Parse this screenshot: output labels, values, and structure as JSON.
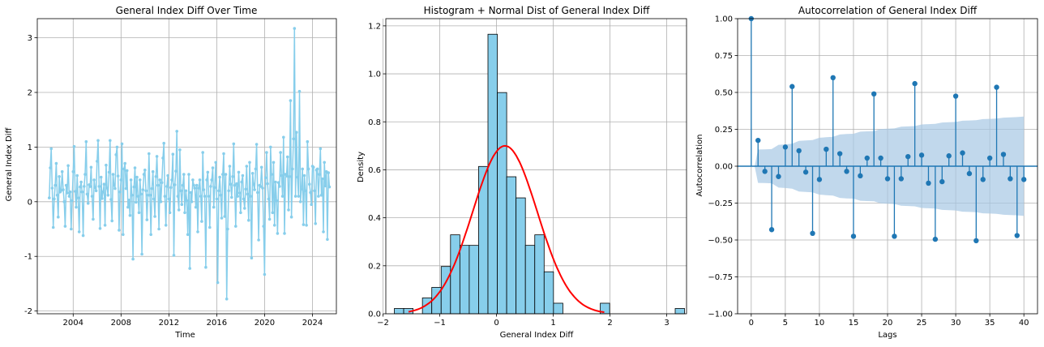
{
  "colors": {
    "line": "#87ceeb",
    "hist_fill": "#87ceeb",
    "normal": "#ff0000",
    "acf": "#1f77b4",
    "band": "#a6c8e4",
    "grid": "#b0b0b0"
  },
  "chart_data": [
    {
      "type": "line",
      "title": "General Index Diff Over Time",
      "xlabel": "Time",
      "ylabel": "General Index Diff",
      "xlim": [
        2001.0,
        2026.0
      ],
      "ylim": [
        -2.05,
        3.35
      ],
      "xticks": [
        "2004",
        "2008",
        "2012",
        "2016",
        "2020",
        "2024"
      ],
      "yticks": [
        "-2",
        "-1",
        "0",
        "1",
        "2",
        "3"
      ],
      "grid": true,
      "x_start": 2002.0,
      "x_step": 0.0833333,
      "values": [
        0.07,
        0.62,
        0.97,
        0.25,
        -0.47,
        0.05,
        0.3,
        0.7,
        0.12,
        -0.28,
        0.46,
        0.18,
        0.21,
        0.55,
        0.22,
        0.0,
        -0.45,
        0.3,
        0.16,
        0.66,
        0.1,
        0.18,
        -0.5,
        0.02,
        0.55,
        1.01,
        0.19,
        -0.1,
        0.48,
        0.07,
        -0.55,
        0.27,
        0.36,
        0.18,
        -0.62,
        0.28,
        0.5,
        1.1,
        0.14,
        -0.03,
        0.31,
        0.28,
        0.63,
        0.1,
        -0.32,
        0.4,
        0.26,
        0.2,
        0.74,
        1.12,
        0.28,
        -0.49,
        0.45,
        0.06,
        0.18,
        0.32,
        -0.43,
        0.67,
        0.25,
        0.12,
        0.54,
        1.12,
        0.04,
        -0.35,
        0.5,
        0.3,
        0.24,
        0.86,
        1.0,
        0.47,
        -0.52,
        0.18,
        0.4,
        1.06,
        -0.6,
        0.6,
        0.7,
        0.24,
        0.57,
        -0.1,
        0.03,
        -0.25,
        0.4,
        0.12,
        -1.05,
        0.27,
        0.62,
        -0.01,
        0.45,
        0.1,
        -0.2,
        0.4,
        0.14,
        -0.96,
        0.22,
        0.5,
        0.58,
        0.2,
        -0.33,
        0.12,
        0.88,
        0.12,
        -0.6,
        0.24,
        0.55,
        0.05,
        -0.27,
        0.46,
        0.83,
        0.3,
        -0.5,
        0.4,
        0.0,
        0.35,
        0.8,
        1.07,
        0.1,
        -0.43,
        0.28,
        0.48,
        0.05,
        -0.2,
        0.26,
        0.4,
        0.87,
        -0.98,
        0.31,
        0.56,
        1.29,
        0.1,
        -0.15,
        0.95,
        0.2,
        -0.05,
        0.3,
        0.5,
        -0.2,
        0.2,
        0.02,
        -0.6,
        0.5,
        -1.22,
        0.17,
        0.0,
        0.4,
        0.3,
        0.25,
        -0.1,
        0.3,
        -0.55,
        0.25,
        0.4,
        0.1,
        -0.36,
        0.9,
        0.22,
        0.1,
        -1.2,
        0.4,
        0.54,
        0.1,
        -0.47,
        0.28,
        0.4,
        0.62,
        -0.1,
        0.26,
        0.72,
        0.05,
        -1.48,
        0.2,
        0.45,
        0.12,
        -0.3,
        0.5,
        0.88,
        -0.27,
        0.5,
        -1.78,
        -0.5,
        0.2,
        0.65,
        0.32,
        0.08,
        0.46,
        1.06,
        0.3,
        -0.45,
        0.33,
        0.1,
        0.54,
        0.16,
        -0.2,
        0.36,
        0.48,
        0.05,
        -0.12,
        0.23,
        0.65,
        0.14,
        -0.34,
        0.72,
        0.1,
        -1.03,
        0.52,
        0.32,
        0.22,
        0.6,
        1.05,
        0.17,
        -0.7,
        0.3,
        0.28,
        0.63,
        0.25,
        -0.45,
        -1.33,
        0.44,
        0.9,
        0.33,
        0.05,
        -0.32,
        1.0,
        0.5,
        -0.2,
        0.72,
        -0.43,
        0.36,
        0.02,
        -0.58,
        0.35,
        0.28,
        0.9,
        0.48,
        0.1,
        1.18,
        -0.58,
        0.5,
        0.47,
        0.82,
        -0.15,
        0.46,
        1.85,
        -0.28,
        0.6,
        1.15,
        3.17,
        0.1,
        1.27,
        0.45,
        0.1,
        2.02,
        0.0,
        0.23,
        0.6,
        -0.42,
        0.48,
        0.2,
        -0.43,
        1.1,
        0.6,
        0.32,
        0.17,
        -0.05,
        0.65,
        0.63,
        0.2,
        -0.4,
        0.58,
        0.6,
        0.1,
        0.5,
        0.97,
        0.12,
        0.42,
        -0.55,
        0.72,
        0.29,
        0.55,
        -0.69,
        0.53,
        0.27
      ]
    },
    {
      "type": "bar",
      "title": "Histogram + Normal Dist of General Index Diff",
      "xlabel": "General Index Diff",
      "ylabel": "Density",
      "xlim": [
        -1.95,
        3.35
      ],
      "ylim": [
        0,
        1.23
      ],
      "xticks": [
        "−2",
        "−1",
        "0",
        "1",
        "2",
        "3"
      ],
      "yticks": [
        "0.0",
        "0.2",
        "0.4",
        "0.6",
        "0.8",
        "1.0",
        "1.2"
      ],
      "grid": true,
      "bin_start": -1.8,
      "bin_width": 0.165,
      "densities": [
        0.022,
        0.022,
        0.0,
        0.066,
        0.11,
        0.197,
        0.329,
        0.285,
        0.285,
        0.614,
        1.165,
        0.922,
        0.571,
        0.483,
        0.285,
        0.329,
        0.175,
        0.044,
        0.0,
        0.0,
        0.0,
        0.0,
        0.044,
        0.0,
        0.0,
        0.0,
        0.0,
        0.0,
        0.0,
        0.0,
        0.022
      ],
      "normal_curve": {
        "mean": 0.15,
        "std": 0.57,
        "x_range": [
          -1.55,
          1.9
        ]
      }
    },
    {
      "type": "scatter",
      "title": "Autocorrelation of General Index Diff",
      "xlabel": "Lags",
      "ylabel": "Autocorrelation",
      "xlim": [
        -2.0,
        42.0
      ],
      "ylim": [
        -1.0,
        1.0
      ],
      "xticks": [
        "0",
        "5",
        "10",
        "15",
        "20",
        "25",
        "30",
        "35",
        "40"
      ],
      "yticks": [
        "−1.00",
        "−0.75",
        "−0.50",
        "−0.25",
        "0.00",
        "0.25",
        "0.50",
        "0.75",
        "1.00"
      ],
      "grid": true,
      "acf": [
        1.0,
        0.175,
        -0.035,
        -0.43,
        -0.07,
        0.13,
        0.54,
        0.105,
        -0.04,
        -0.455,
        -0.09,
        0.115,
        0.6,
        0.085,
        -0.035,
        -0.475,
        -0.065,
        0.055,
        0.49,
        0.055,
        -0.085,
        -0.475,
        -0.085,
        0.065,
        0.56,
        0.075,
        -0.115,
        -0.495,
        -0.105,
        0.07,
        0.475,
        0.09,
        -0.05,
        -0.505,
        -0.09,
        0.055,
        0.535,
        0.08,
        -0.085,
        -0.47,
        -0.09
      ],
      "conf_band": [
        0.0,
        0.113,
        0.114,
        0.116,
        0.145,
        0.148,
        0.152,
        0.172,
        0.175,
        0.177,
        0.193,
        0.196,
        0.199,
        0.215,
        0.218,
        0.22,
        0.234,
        0.236,
        0.238,
        0.252,
        0.254,
        0.256,
        0.268,
        0.27,
        0.272,
        0.283,
        0.285,
        0.287,
        0.296,
        0.298,
        0.3,
        0.308,
        0.31,
        0.312,
        0.319,
        0.321,
        0.323,
        0.329,
        0.331,
        0.333,
        0.336
      ]
    }
  ]
}
